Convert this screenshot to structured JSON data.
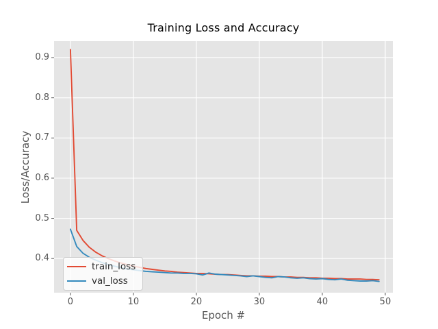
{
  "chart_data": {
    "type": "line",
    "title": "Training Loss and Accuracy",
    "xlabel": "Epoch #",
    "ylabel": "Loss/Accuracy",
    "xlim": [
      -2.6,
      51.2
    ],
    "ylim": [
      0.315,
      0.941
    ],
    "xticks": [
      0,
      10,
      20,
      30,
      40,
      50
    ],
    "yticks": [
      0.4,
      0.5,
      0.6,
      0.7,
      0.8,
      0.9
    ],
    "grid": true,
    "legend_position": "lower left",
    "x": [
      0,
      1,
      2,
      3,
      4,
      5,
      6,
      7,
      8,
      9,
      10,
      11,
      12,
      13,
      14,
      15,
      16,
      17,
      18,
      19,
      20,
      21,
      22,
      23,
      24,
      25,
      26,
      27,
      28,
      29,
      30,
      31,
      32,
      33,
      34,
      35,
      36,
      37,
      38,
      39,
      40,
      41,
      42,
      43,
      44,
      45,
      46,
      47,
      48,
      49
    ],
    "series": [
      {
        "name": "train_loss",
        "color": "#E24A33",
        "values": [
          0.92,
          0.47,
          0.445,
          0.428,
          0.416,
          0.407,
          0.4,
          0.394,
          0.389,
          0.385,
          0.381,
          0.378,
          0.375,
          0.373,
          0.371,
          0.369,
          0.368,
          0.366,
          0.365,
          0.364,
          0.363,
          0.363,
          0.362,
          0.361,
          0.36,
          0.36,
          0.359,
          0.358,
          0.357,
          0.357,
          0.356,
          0.356,
          0.355,
          0.355,
          0.354,
          0.354,
          0.353,
          0.353,
          0.352,
          0.352,
          0.351,
          0.351,
          0.35,
          0.35,
          0.349,
          0.349,
          0.349,
          0.348,
          0.348,
          0.347
        ]
      },
      {
        "name": "val_loss",
        "color": "#348ABD",
        "values": [
          0.473,
          0.43,
          0.413,
          0.403,
          0.396,
          0.39,
          0.385,
          0.381,
          0.377,
          0.374,
          0.372,
          0.37,
          0.368,
          0.367,
          0.366,
          0.365,
          0.364,
          0.364,
          0.363,
          0.363,
          0.362,
          0.359,
          0.364,
          0.361,
          0.36,
          0.359,
          0.358,
          0.357,
          0.355,
          0.357,
          0.355,
          0.353,
          0.352,
          0.355,
          0.354,
          0.352,
          0.351,
          0.352,
          0.35,
          0.349,
          0.35,
          0.348,
          0.347,
          0.349,
          0.346,
          0.345,
          0.344,
          0.344,
          0.345,
          0.343
        ]
      }
    ],
    "colors": {
      "figure_background": "#FFFFFF",
      "plot_background": "#E5E5E5",
      "grid": "#FFFFFF",
      "tick": "#555555",
      "tick_label": "#555555",
      "axis_label": "#555555",
      "title": "#000000",
      "legend_border": "#CCCCCC"
    }
  }
}
